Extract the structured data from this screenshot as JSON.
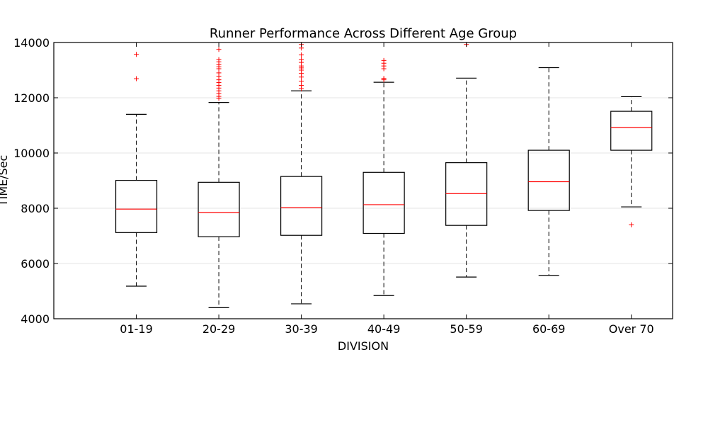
{
  "chart_data": {
    "type": "box",
    "title": "Runner Performance Across Different Age Group",
    "xlabel": "DIVISION",
    "ylabel": "TIME/Sec",
    "ylim": [
      4000,
      14000
    ],
    "yticks": [
      "4000",
      "6000",
      "8000",
      "10000",
      "12000",
      "14000"
    ],
    "grid": "horizontal",
    "colors": {
      "box": "#000000",
      "median": "#ff0000",
      "flier": "#ff0000",
      "grid": "#e6e6e6"
    },
    "categories": [
      "01-19",
      "20-29",
      "30-39",
      "40-49",
      "50-59",
      "60-69",
      "Over 70"
    ],
    "boxes": [
      {
        "category": "01-19",
        "whislo": 5180,
        "q1": 7120,
        "median": 7970,
        "q3": 9010,
        "whishi": 11400,
        "fliers": [
          12690,
          13570
        ]
      },
      {
        "category": "20-29",
        "whislo": 4400,
        "q1": 6970,
        "median": 7840,
        "q3": 8940,
        "whishi": 11830,
        "fliers": [
          11980,
          12050,
          12150,
          12250,
          12350,
          12450,
          12550,
          12650,
          12780,
          12900,
          13050,
          13120,
          13200,
          13300,
          13380,
          13750
        ]
      },
      {
        "category": "30-39",
        "whislo": 4540,
        "q1": 7020,
        "median": 8020,
        "q3": 9150,
        "whishi": 12250,
        "fliers": [
          12330,
          12450,
          12600,
          12750,
          12880,
          13000,
          13080,
          13150,
          13280,
          13380,
          13550,
          13800,
          13930
        ]
      },
      {
        "category": "40-49",
        "whislo": 4840,
        "q1": 7090,
        "median": 8130,
        "q3": 9300,
        "whishi": 12560,
        "fliers": [
          12650,
          12700,
          13050,
          13150,
          13250,
          13350
        ]
      },
      {
        "category": "50-59",
        "whislo": 5510,
        "q1": 7380,
        "median": 8530,
        "q3": 9650,
        "whishi": 12710,
        "fliers": [
          13930
        ]
      },
      {
        "category": "60-69",
        "whislo": 5570,
        "q1": 7920,
        "median": 8960,
        "q3": 10100,
        "whishi": 13090,
        "fliers": []
      },
      {
        "category": "Over 70",
        "whislo": 8050,
        "q1": 10100,
        "median": 10920,
        "q3": 11510,
        "whishi": 12040,
        "fliers": [
          7400
        ]
      }
    ]
  }
}
